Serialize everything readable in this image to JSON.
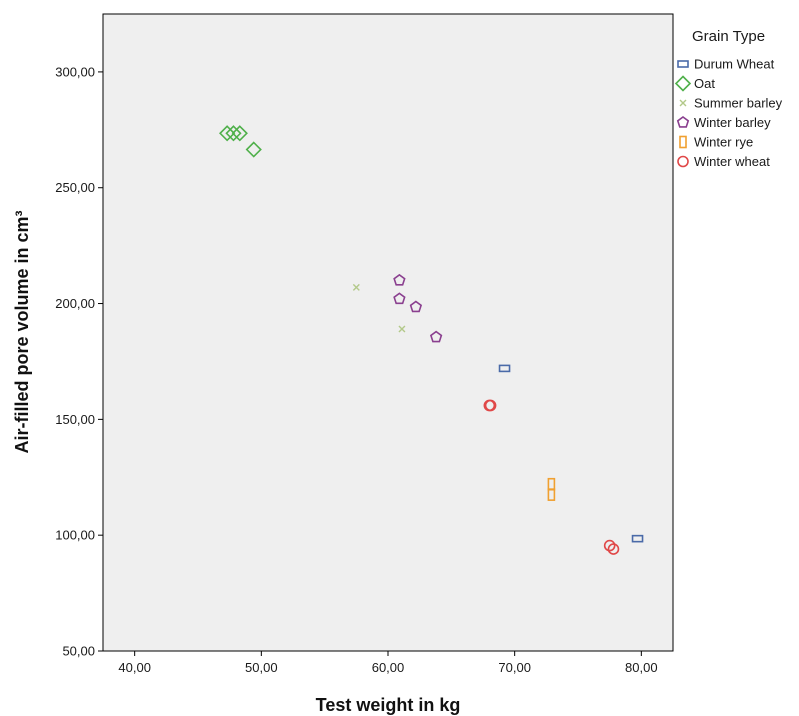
{
  "chart_data": {
    "type": "scatter",
    "xlabel": "Test weight in kg",
    "ylabel": "Air-filled pore volume in cm³",
    "xlim": [
      37.5,
      82.5
    ],
    "ylim": [
      50,
      325
    ],
    "x_ticks": [
      "40,00",
      "50,00",
      "60,00",
      "70,00",
      "80,00"
    ],
    "x_tick_values": [
      40,
      50,
      60,
      70,
      80
    ],
    "y_ticks": [
      "50,00",
      "100,00",
      "150,00",
      "200,00",
      "250,00",
      "300,00"
    ],
    "y_tick_values": [
      50,
      100,
      150,
      200,
      250,
      300
    ],
    "background": "#efefef",
    "grid": false,
    "legend_title": "Grain Type",
    "legend_position": "right",
    "series": [
      {
        "name": "Durum Wheat",
        "marker": "rect",
        "color": "#4a6aa8",
        "points": [
          [
            69.2,
            172
          ],
          [
            79.7,
            98.5
          ]
        ]
      },
      {
        "name": "Oat",
        "marker": "diamond",
        "color": "#4fb04a",
        "points": [
          [
            47.3,
            273.5
          ],
          [
            47.8,
            273.5
          ],
          [
            48.3,
            273.5
          ],
          [
            49.4,
            266.5
          ]
        ]
      },
      {
        "name": "Summer barley",
        "marker": "x",
        "color": "#b3c98a",
        "points": [
          [
            57.5,
            207
          ],
          [
            61.1,
            189
          ]
        ]
      },
      {
        "name": "Winter barley",
        "marker": "pentagon",
        "color": "#8a3f8f",
        "points": [
          [
            60.9,
            210
          ],
          [
            60.9,
            202
          ],
          [
            62.2,
            198.5
          ],
          [
            63.8,
            185.5
          ]
        ]
      },
      {
        "name": "Winter rye",
        "marker": "vrect",
        "color": "#f0a030",
        "points": [
          [
            72.9,
            122
          ],
          [
            72.9,
            117.5
          ]
        ]
      },
      {
        "name": "Winter wheat",
        "marker": "circle",
        "color": "#e04848",
        "points": [
          [
            68.0,
            156
          ],
          [
            68.1,
            156
          ],
          [
            77.5,
            95.5
          ],
          [
            77.8,
            94
          ]
        ]
      }
    ]
  }
}
